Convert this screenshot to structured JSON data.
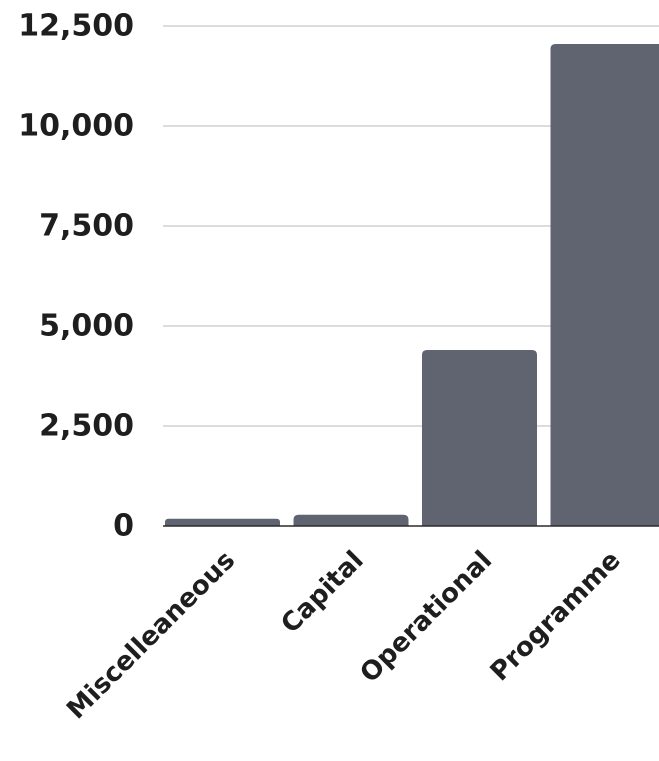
{
  "chart_data": {
    "type": "bar",
    "categories": [
      "Miscelleaneous",
      "Capital",
      "Operational",
      "Programme"
    ],
    "values": [
      180,
      280,
      4400,
      12050
    ],
    "ylim": [
      0,
      12500
    ],
    "yticks": [
      0,
      2500,
      5000,
      7500,
      10000,
      12500
    ],
    "ytick_labels": [
      "0",
      "2,500",
      "5,000",
      "7,500",
      "10,000",
      "12,500"
    ],
    "bar_color": "#5f6470",
    "grid": true,
    "legend": "none"
  }
}
